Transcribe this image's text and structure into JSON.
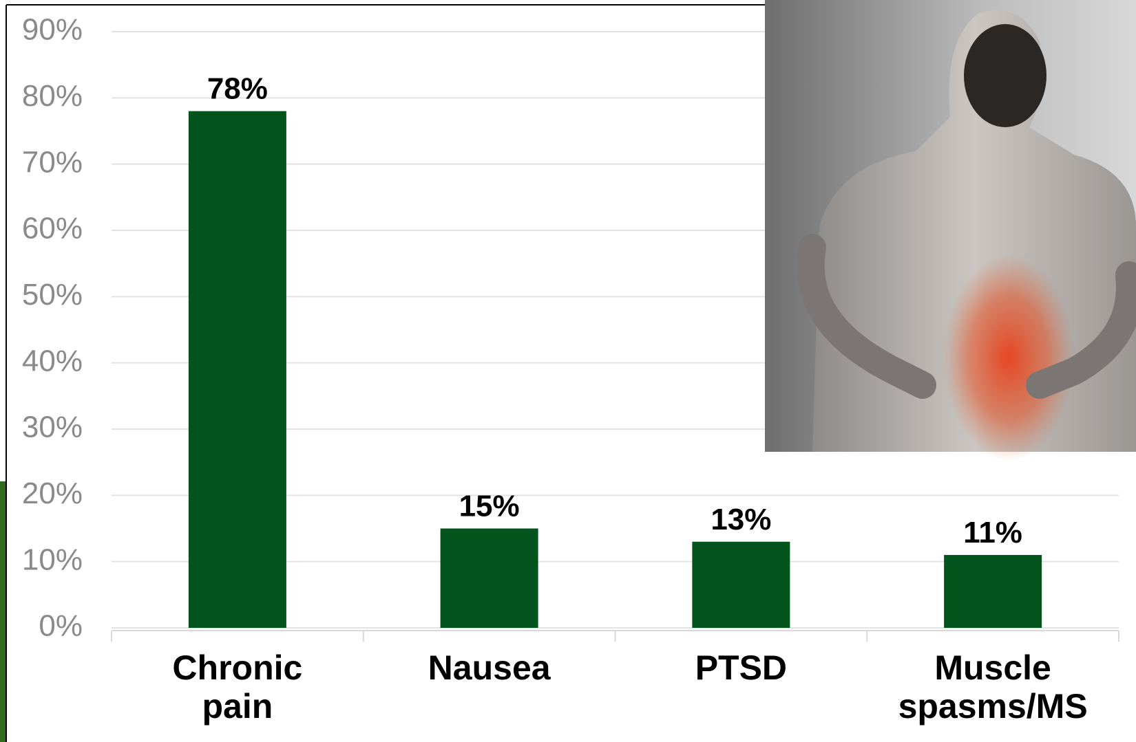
{
  "chart_data": {
    "type": "bar",
    "categories": [
      "Chronic pain",
      "Nausea",
      "PTSD",
      "Muscle spasms/MS"
    ],
    "values": [
      78,
      15,
      13,
      11
    ],
    "value_labels": [
      "78%",
      "15%",
      "13%",
      "11%"
    ],
    "color": "#03531c",
    "ylim": [
      0,
      90
    ],
    "yticks": [
      {
        "value": 0,
        "label": "0%"
      },
      {
        "value": 10,
        "label": "10%"
      },
      {
        "value": 20,
        "label": "20%"
      },
      {
        "value": 30,
        "label": "30%"
      },
      {
        "value": 40,
        "label": "40%"
      },
      {
        "value": 50,
        "label": "50%"
      },
      {
        "value": 60,
        "label": "60%"
      },
      {
        "value": 70,
        "label": "70%"
      },
      {
        "value": 80,
        "label": "80%"
      },
      {
        "value": 90,
        "label": "90%"
      }
    ],
    "grid": true
  }
}
